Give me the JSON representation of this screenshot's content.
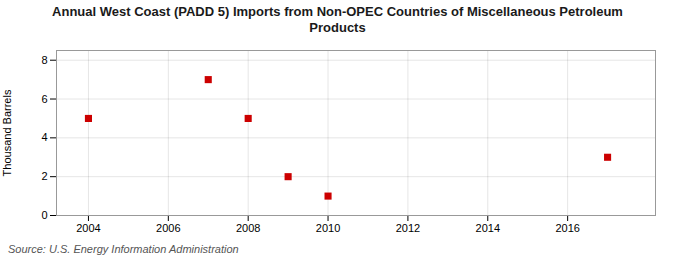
{
  "chart_data": {
    "type": "scatter",
    "title": "Annual West Coast (PADD 5) Imports from Non-OPEC Countries of Miscellaneous Petroleum\nProducts",
    "ylabel": "Thousand Barrels",
    "caption": "Source: U.S. Energy Information Administration",
    "x": [
      2004,
      2007,
      2008,
      2009,
      2010,
      2017
    ],
    "values": [
      5,
      7,
      5,
      2,
      1,
      3
    ],
    "color": "#cc0000",
    "marker": "square",
    "xlim": [
      2003.2,
      2018.2
    ],
    "xticks": [
      2004,
      2006,
      2008,
      2010,
      2012,
      2014,
      2016
    ],
    "ylim": [
      0,
      8.5
    ],
    "yticks": [
      0,
      2,
      4,
      6,
      8
    ],
    "grid": true
  }
}
